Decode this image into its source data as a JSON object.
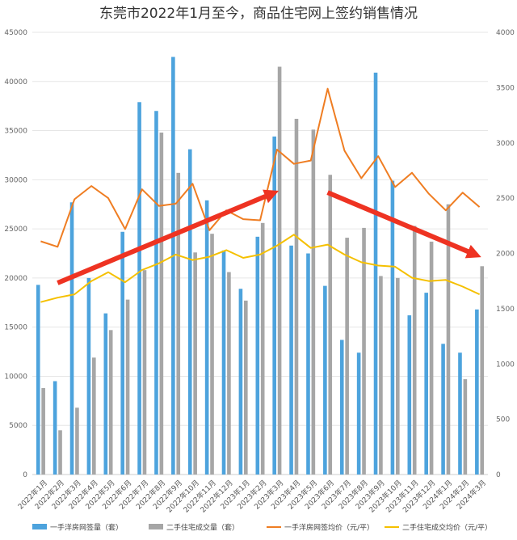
{
  "chart_data": {
    "type": "bar",
    "title": "东莞市2022年1月至今，商品住宅网上签约销售情况",
    "categories": [
      "2022年1月",
      "2022年2月",
      "2022年3月",
      "2022年4月",
      "2022年5月",
      "2022年6月",
      "2022年7月",
      "2022年8月",
      "2022年9月",
      "2022年10月",
      "2022年11月",
      "2022年12月",
      "2023年1月",
      "2023年2月",
      "2023年3月",
      "2023年4月",
      "2023年5月",
      "2023年6月",
      "2023年7月",
      "2023年8月",
      "2023年9月",
      "2023年10月",
      "2023年11月",
      "2023年12月",
      "2024年1月",
      "2024年2月",
      "2024年3月"
    ],
    "y_left": {
      "min": 0,
      "max": 45000,
      "step": 5000,
      "ticks": [
        "0",
        "5000",
        "10000",
        "15000",
        "20000",
        "25000",
        "30000",
        "35000",
        "40000",
        "45000"
      ]
    },
    "y_right": {
      "min": 0,
      "max": 4000,
      "step": 500,
      "ticks": [
        "0",
        "500",
        "1000",
        "1500",
        "2000",
        "2500",
        "3000",
        "3500",
        "4000"
      ]
    },
    "grid": true,
    "legend_position": "bottom",
    "series": [
      {
        "name": "一手洋房网签量（套）",
        "kind": "bar",
        "axis": "left",
        "color": "#4da3dd",
        "values": [
          19300,
          9500,
          27700,
          20000,
          16400,
          24700,
          37900,
          37000,
          42500,
          33100,
          27900,
          22800,
          18900,
          24200,
          34400,
          23300,
          22500,
          19200,
          13700,
          12400,
          40900,
          29900,
          16200,
          18500,
          13300,
          12400,
          16800
        ]
      },
      {
        "name": "二手住宅成交量（套）",
        "kind": "bar",
        "axis": "left",
        "color": "#a6a6a6",
        "values": [
          8800,
          4500,
          6800,
          11900,
          14700,
          17800,
          20800,
          34800,
          30700,
          22600,
          24500,
          20600,
          17700,
          25600,
          41500,
          36200,
          35100,
          30500,
          24100,
          25100,
          20200,
          20000,
          25300,
          23700,
          27500,
          9700,
          21200
        ]
      },
      {
        "name": "一手洋房网签均价（元/平）",
        "kind": "line",
        "axis": "right",
        "color": "#ef7d22",
        "values": [
          2110,
          2060,
          2490,
          2610,
          2500,
          2220,
          2580,
          2430,
          2450,
          2630,
          2210,
          2390,
          2310,
          2300,
          2940,
          2810,
          2840,
          3490,
          2930,
          2680,
          2880,
          2600,
          2730,
          2540,
          2390,
          2550,
          2420
        ]
      },
      {
        "name": "二手住宅成交均价（元/平）",
        "kind": "line",
        "axis": "right",
        "color": "#f5c000",
        "values": [
          1560,
          1600,
          1630,
          1750,
          1830,
          1740,
          1850,
          1910,
          1990,
          1940,
          1970,
          2030,
          1960,
          1990,
          2070,
          2170,
          2050,
          2080,
          1990,
          1920,
          1890,
          1880,
          1780,
          1750,
          1760,
          1700,
          1630
        ]
      }
    ],
    "annotations": [
      {
        "type": "arrow",
        "color": "#ee3322",
        "from": {
          "category": "2022年2月",
          "y_left": 19500
        },
        "to": {
          "category": "2023年3月",
          "y_left": 28800
        }
      },
      {
        "type": "arrow",
        "color": "#ee3322",
        "from": {
          "category": "2023年6月",
          "y_left": 28700
        },
        "to": {
          "category": "2024年3月",
          "y_left": 22200
        }
      }
    ]
  }
}
